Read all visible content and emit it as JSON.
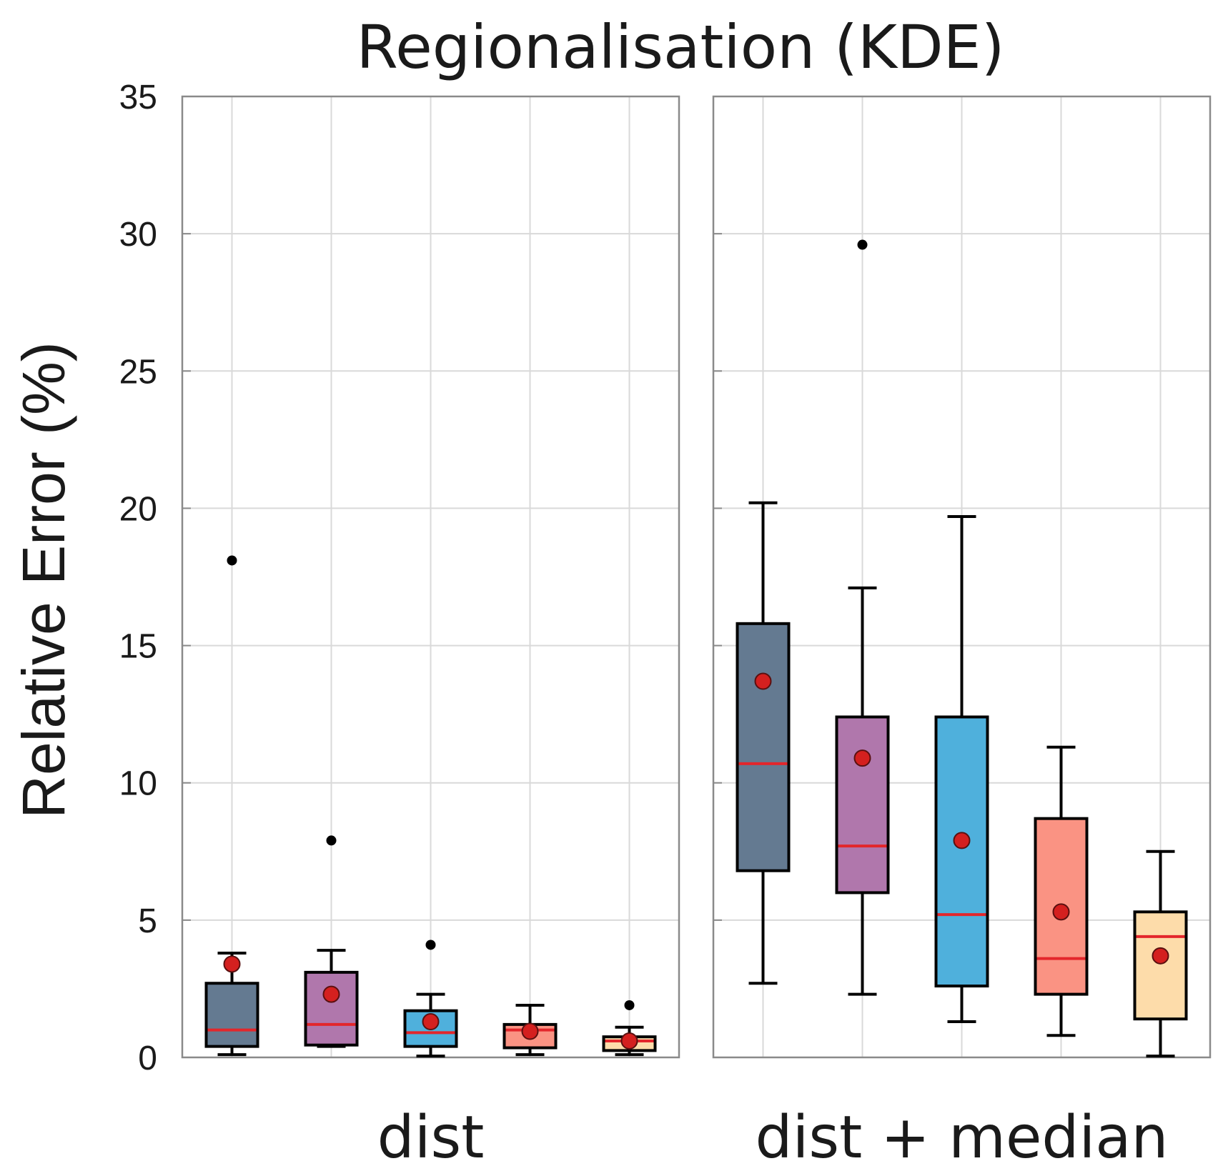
{
  "chart_data": {
    "type": "boxplot",
    "title": "Regionalisation (KDE)",
    "ylabel": "Relative Error (%)",
    "ylim": [
      0,
      35
    ],
    "yticks": [
      "0",
      "5",
      "10",
      "15",
      "20",
      "25",
      "30",
      "35"
    ],
    "grid": true,
    "box_colors": [
      "#647a91",
      "#b077ac",
      "#4fb0dc",
      "#fa9383",
      "#fddcaa"
    ],
    "median_color": "#e3262b",
    "mean_color": "#d4201f",
    "panels": [
      {
        "xlabel": "dist",
        "boxes": [
          {
            "whisker_low": 0.1,
            "q1": 0.4,
            "median": 1.0,
            "q3": 2.7,
            "whisker_high": 3.8,
            "mean": 3.4,
            "outliers": [
              18.1
            ]
          },
          {
            "whisker_low": 0.4,
            "q1": 0.45,
            "median": 1.2,
            "q3": 3.1,
            "whisker_high": 3.9,
            "mean": 2.3,
            "outliers": [
              7.9
            ]
          },
          {
            "whisker_low": 0.05,
            "q1": 0.4,
            "median": 0.9,
            "q3": 1.7,
            "whisker_high": 2.3,
            "mean": 1.3,
            "outliers": [
              4.1
            ]
          },
          {
            "whisker_low": 0.1,
            "q1": 0.35,
            "median": 1.0,
            "q3": 1.2,
            "whisker_high": 1.9,
            "mean": 0.95,
            "outliers": []
          },
          {
            "whisker_low": 0.1,
            "q1": 0.25,
            "median": 0.6,
            "q3": 0.75,
            "whisker_high": 1.1,
            "mean": 0.6,
            "outliers": [
              1.9
            ]
          }
        ]
      },
      {
        "xlabel": "dist + median",
        "boxes": [
          {
            "whisker_low": 2.7,
            "q1": 6.8,
            "median": 10.7,
            "q3": 15.8,
            "whisker_high": 20.2,
            "mean": 13.7,
            "outliers": []
          },
          {
            "whisker_low": 2.3,
            "q1": 6.0,
            "median": 7.7,
            "q3": 12.4,
            "whisker_high": 17.1,
            "mean": 10.9,
            "outliers": [
              29.6
            ]
          },
          {
            "whisker_low": 1.3,
            "q1": 2.6,
            "median": 5.2,
            "q3": 12.4,
            "whisker_high": 19.7,
            "mean": 7.9,
            "outliers": []
          },
          {
            "whisker_low": 0.8,
            "q1": 2.3,
            "median": 3.6,
            "q3": 8.7,
            "whisker_high": 11.3,
            "mean": 5.3,
            "outliers": []
          },
          {
            "whisker_low": 0.05,
            "q1": 1.4,
            "median": 4.4,
            "q3": 5.3,
            "whisker_high": 7.5,
            "mean": 3.7,
            "outliers": []
          }
        ]
      }
    ]
  }
}
